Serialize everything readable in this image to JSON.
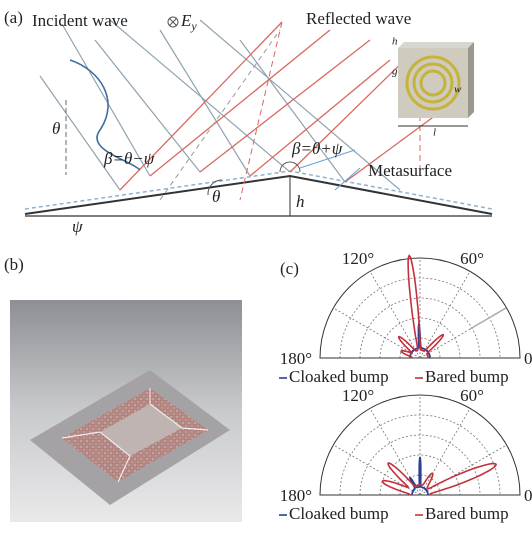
{
  "panel_a": {
    "label": "(a)",
    "incident_wave": "Incident wave",
    "field": {
      "symbol": "E",
      "subscript": "y"
    },
    "reflected_wave": "Reflected wave",
    "metasurface": "Metasurface",
    "angles": {
      "theta_left": "θ",
      "beta_left": "β=θ−ψ",
      "beta_right": "β=θ+ψ",
      "theta_center": "θ",
      "psi": "ψ",
      "height": "h"
    },
    "inset": {
      "h": "h",
      "g": "g",
      "w": "w",
      "l": "l"
    }
  },
  "panel_b": {
    "label": "(b)"
  },
  "panel_c": {
    "label": "(c)",
    "series": [
      {
        "name": "Cloaked bump",
        "color": "#2b3f93"
      },
      {
        "name": "Bared bump",
        "color": "#c4303c"
      }
    ],
    "plots": [
      {
        "angle_labels": [
          "120°",
          "60°",
          "180°",
          "0"
        ]
      },
      {
        "angle_labels": [
          "120°",
          "60°",
          "180°",
          "0"
        ]
      }
    ]
  }
}
